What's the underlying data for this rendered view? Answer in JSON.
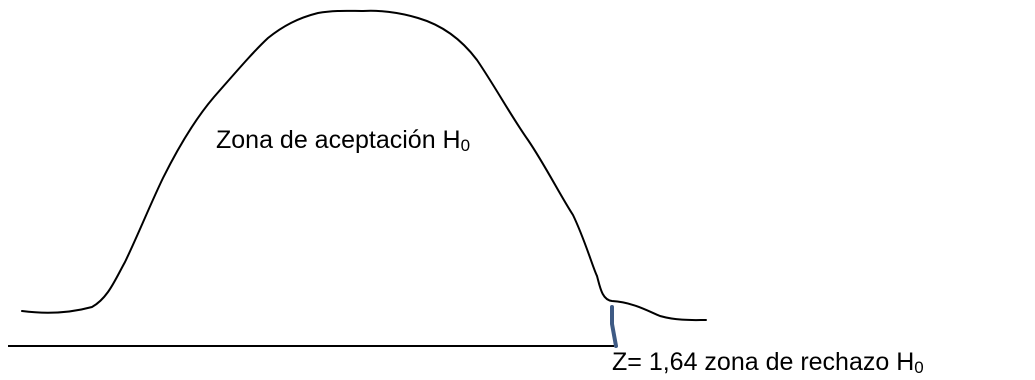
{
  "diagram": {
    "accept_zone": {
      "text": "Zona de aceptación H",
      "subscript": "0"
    },
    "reject_zone": {
      "text": "Z= 1,64 zona de rechazo H",
      "subscript": "0"
    },
    "colors": {
      "curve": "#000000",
      "axis": "#000000",
      "critical_marker": "#3e5a84"
    }
  }
}
